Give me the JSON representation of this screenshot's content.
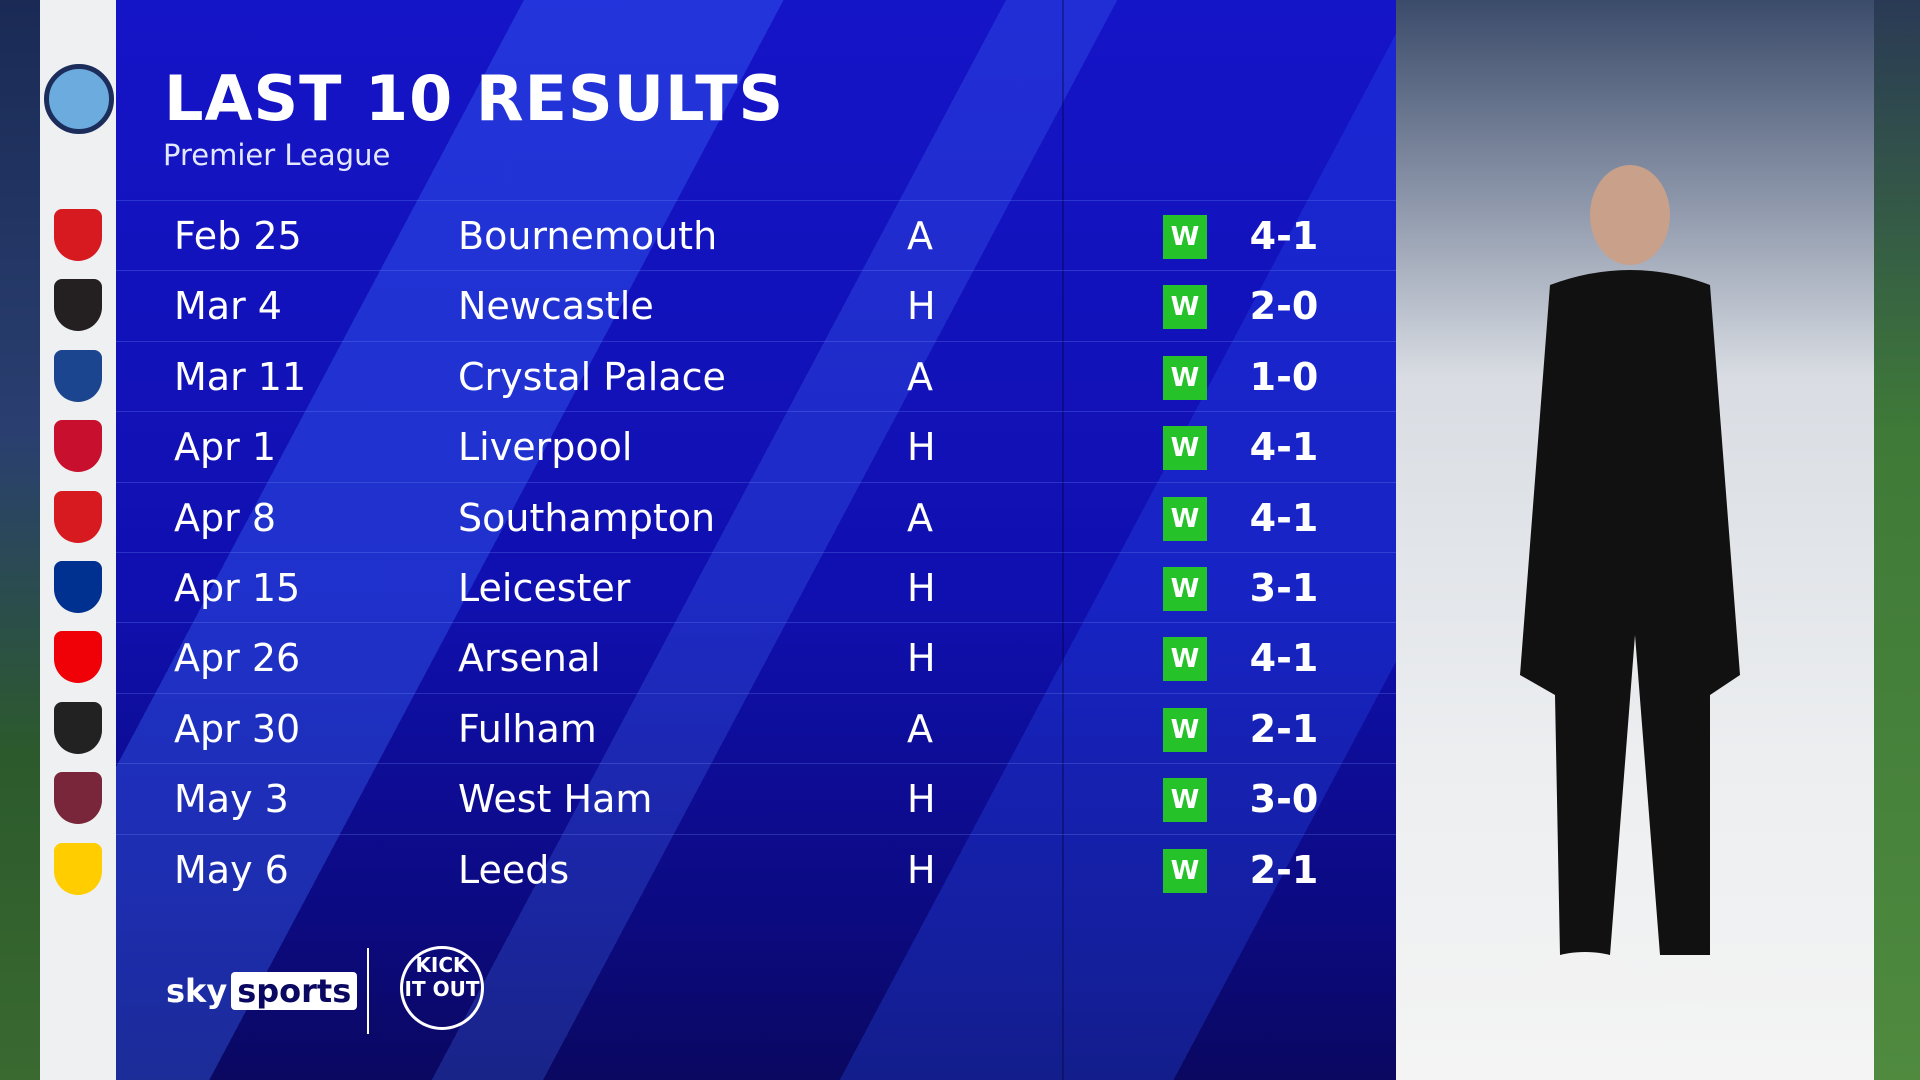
{
  "header": {
    "title": "LAST 10 RESULTS",
    "subtitle": "Premier League"
  },
  "team_badge": "manchester-city-crest",
  "results": [
    {
      "date": "Feb 25",
      "opponent": "Bournemouth",
      "venue": "A",
      "result": "W",
      "score": "4-1",
      "badge_color": "#d71920"
    },
    {
      "date": "Mar 4",
      "opponent": "Newcastle",
      "venue": "H",
      "result": "W",
      "score": "2-0",
      "badge_color": "#241f20"
    },
    {
      "date": "Mar 11",
      "opponent": "Crystal Palace",
      "venue": "A",
      "result": "W",
      "score": "1-0",
      "badge_color": "#1b458f"
    },
    {
      "date": "Apr 1",
      "opponent": "Liverpool",
      "venue": "H",
      "result": "W",
      "score": "4-1",
      "badge_color": "#c8102e"
    },
    {
      "date": "Apr 8",
      "opponent": "Southampton",
      "venue": "A",
      "result": "W",
      "score": "4-1",
      "badge_color": "#d71920"
    },
    {
      "date": "Apr 15",
      "opponent": "Leicester",
      "venue": "H",
      "result": "W",
      "score": "3-1",
      "badge_color": "#003090"
    },
    {
      "date": "Apr 26",
      "opponent": "Arsenal",
      "venue": "H",
      "result": "W",
      "score": "4-1",
      "badge_color": "#ef0107"
    },
    {
      "date": "Apr 30",
      "opponent": "Fulham",
      "venue": "A",
      "result": "W",
      "score": "2-1",
      "badge_color": "#222222"
    },
    {
      "date": "May 3",
      "opponent": "West Ham",
      "venue": "H",
      "result": "W",
      "score": "3-0",
      "badge_color": "#7a263a"
    },
    {
      "date": "May 6",
      "opponent": "Leeds",
      "venue": "H",
      "result": "W",
      "score": "2-1",
      "badge_color": "#ffcd00"
    }
  ],
  "colors": {
    "win": "#25c22a",
    "panel": "#1212c0"
  },
  "footer": {
    "sky": "sky",
    "sports": "sports",
    "kick_it_out": "KICK IT OUT"
  }
}
